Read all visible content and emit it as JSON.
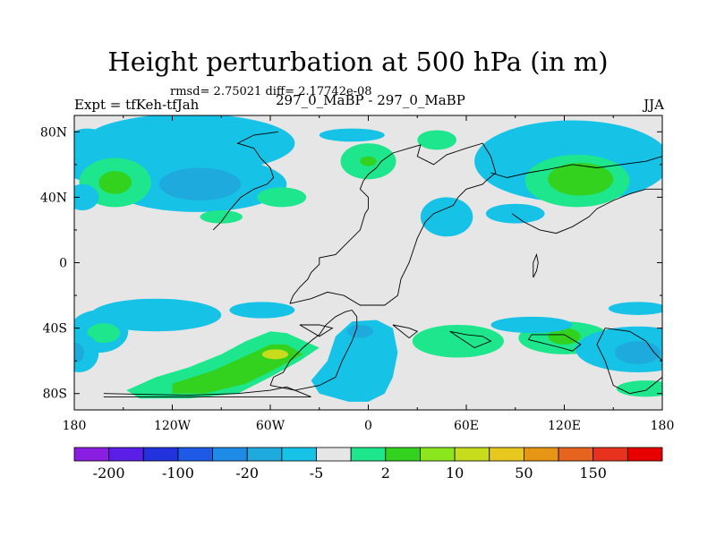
{
  "chart_data": {
    "type": "heatmap",
    "title": "Height perturbation at 500 hPa (in m)",
    "subtitle": "rmsd= 2.75021 diff= 2.17742e-08",
    "left_label": "Expt = tfKeh-tfJah",
    "center_label": "297_0_MaBP - 297_0_MaBP",
    "right_label": "JJA",
    "x_range": [
      -180,
      180
    ],
    "y_range": [
      -90,
      90
    ],
    "x_ticks": [
      {
        "value": -180,
        "label": "180"
      },
      {
        "value": -120,
        "label": "120W"
      },
      {
        "value": -60,
        "label": "60W"
      },
      {
        "value": 0,
        "label": "0"
      },
      {
        "value": 60,
        "label": "60E"
      },
      {
        "value": 120,
        "label": "120E"
      },
      {
        "value": 180,
        "label": "180"
      }
    ],
    "y_ticks": [
      {
        "value": 80,
        "label": "80N"
      },
      {
        "value": 40,
        "label": "40N"
      },
      {
        "value": 0,
        "label": "0"
      },
      {
        "value": -40,
        "label": "40S"
      },
      {
        "value": -80,
        "label": "80S"
      }
    ],
    "colorbar": {
      "colors": [
        "#8a1ee0",
        "#5a1ee6",
        "#2232dc",
        "#1e5ae6",
        "#1e8ce6",
        "#1eaadc",
        "#16c3e6",
        "#e6e6e6",
        "#1ee68c",
        "#32d21e",
        "#8ce61e",
        "#c8dc1e",
        "#e6c81e",
        "#e69614",
        "#e6641e",
        "#e6321e",
        "#e60000"
      ],
      "tick_labels": [
        "-200",
        "-100",
        "-20",
        "-5",
        "2",
        "10",
        "50",
        "150"
      ]
    },
    "regions": [
      {
        "level": 10,
        "shape": "ellipse",
        "cx": -105,
        "cy": 75,
        "rx": 42,
        "ry": 13
      },
      {
        "level": -5,
        "shape": "ellipse",
        "cx": -110,
        "cy": 73,
        "rx": 65,
        "ry": 18
      },
      {
        "level": -5,
        "shape": "ellipse",
        "cx": -172,
        "cy": 66,
        "rx": 18,
        "ry": 16
      },
      {
        "level": -5,
        "shape": "ellipse",
        "cx": -105,
        "cy": 48,
        "rx": 55,
        "ry": 17
      },
      {
        "level": -20,
        "shape": "ellipse",
        "cx": -103,
        "cy": 48,
        "rx": 25,
        "ry": 10
      },
      {
        "level": 2,
        "shape": "ellipse",
        "cx": -155,
        "cy": 49,
        "rx": 22,
        "ry": 15
      },
      {
        "level": 10,
        "shape": "ellipse",
        "cx": -155,
        "cy": 49,
        "rx": 10,
        "ry": 7
      },
      {
        "level": -5,
        "shape": "ellipse",
        "cx": -175,
        "cy": 40,
        "rx": 10,
        "ry": 8
      },
      {
        "level": 2,
        "shape": "ellipse",
        "cx": -53,
        "cy": 40,
        "rx": 15,
        "ry": 6
      },
      {
        "level": 2,
        "shape": "ellipse",
        "cx": -90,
        "cy": 28,
        "rx": 13,
        "ry": 4
      },
      {
        "level": -5,
        "shape": "ellipse",
        "cx": -10,
        "cy": 78,
        "rx": 20,
        "ry": 4
      },
      {
        "level": 2,
        "shape": "ellipse",
        "cx": 0,
        "cy": 62,
        "rx": 17,
        "ry": 11
      },
      {
        "level": 10,
        "shape": "ellipse",
        "cx": 0,
        "cy": 62,
        "rx": 5,
        "ry": 3
      },
      {
        "level": -5,
        "shape": "ellipse",
        "cx": 125,
        "cy": 62,
        "rx": 60,
        "ry": 25
      },
      {
        "level": 2,
        "shape": "ellipse",
        "cx": 128,
        "cy": 50,
        "rx": 32,
        "ry": 16
      },
      {
        "level": 10,
        "shape": "ellipse",
        "cx": 130,
        "cy": 51,
        "rx": 20,
        "ry": 10
      },
      {
        "level": -5,
        "shape": "ellipse",
        "cx": 90,
        "cy": 30,
        "rx": 18,
        "ry": 6
      },
      {
        "level": -5,
        "shape": "ellipse",
        "cx": 48,
        "cy": 28,
        "rx": 16,
        "ry": 12
      },
      {
        "level": 2,
        "shape": "ellipse",
        "cx": 42,
        "cy": 75,
        "rx": 12,
        "ry": 6
      },
      {
        "level": -5,
        "shape": "ellipse",
        "cx": -130,
        "cy": -32,
        "rx": 40,
        "ry": 10
      },
      {
        "level": -5,
        "shape": "ellipse",
        "cx": -165,
        "cy": -42,
        "rx": 18,
        "ry": 13
      },
      {
        "level": 2,
        "shape": "ellipse",
        "cx": -162,
        "cy": -43,
        "rx": 10,
        "ry": 6
      },
      {
        "level": -5,
        "shape": "ellipse",
        "cx": -177,
        "cy": -55,
        "rx": 12,
        "ry": 12
      },
      {
        "level": -20,
        "shape": "ellipse",
        "cx": -179,
        "cy": -55,
        "rx": 5,
        "ry": 6
      },
      {
        "level": -5,
        "shape": "ellipse",
        "cx": -65,
        "cy": -29,
        "rx": 20,
        "ry": 5
      },
      {
        "level": 2,
        "shape": "polygon",
        "points": [
          [
            -148,
            -78
          ],
          [
            -130,
            -70
          ],
          [
            -110,
            -64
          ],
          [
            -90,
            -56
          ],
          [
            -75,
            -48
          ],
          [
            -60,
            -42
          ],
          [
            -50,
            -43
          ],
          [
            -30,
            -52
          ],
          [
            -42,
            -60
          ],
          [
            -60,
            -70
          ],
          [
            -80,
            -80
          ],
          [
            -110,
            -83
          ],
          [
            -140,
            -83
          ]
        ]
      },
      {
        "level": 10,
        "shape": "polygon",
        "points": [
          [
            -120,
            -74
          ],
          [
            -95,
            -66
          ],
          [
            -75,
            -57
          ],
          [
            -60,
            -50
          ],
          [
            -50,
            -50
          ],
          [
            -40,
            -56
          ],
          [
            -55,
            -64
          ],
          [
            -75,
            -74
          ],
          [
            -100,
            -80
          ],
          [
            -120,
            -80
          ]
        ]
      },
      {
        "level": 50,
        "shape": "ellipse",
        "cx": -57,
        "cy": -56,
        "rx": 8,
        "ry": 3
      },
      {
        "level": -5,
        "shape": "polygon",
        "points": [
          [
            -20,
            -45
          ],
          [
            -10,
            -36
          ],
          [
            5,
            -35
          ],
          [
            15,
            -40
          ],
          [
            18,
            -55
          ],
          [
            15,
            -70
          ],
          [
            10,
            -80
          ],
          [
            0,
            -85
          ],
          [
            -12,
            -85
          ],
          [
            -30,
            -80
          ],
          [
            -35,
            -72
          ],
          [
            -25,
            -60
          ]
        ]
      },
      {
        "level": -20,
        "shape": "ellipse",
        "cx": -5,
        "cy": -42,
        "rx": 8,
        "ry": 4
      },
      {
        "level": 2,
        "shape": "ellipse",
        "cx": 55,
        "cy": -48,
        "rx": 28,
        "ry": 10
      },
      {
        "level": 2,
        "shape": "ellipse",
        "cx": 120,
        "cy": -46,
        "rx": 28,
        "ry": 10
      },
      {
        "level": 10,
        "shape": "ellipse",
        "cx": 120,
        "cy": -45,
        "rx": 10,
        "ry": 5
      },
      {
        "level": -5,
        "shape": "ellipse",
        "cx": 100,
        "cy": -38,
        "rx": 25,
        "ry": 5
      },
      {
        "level": -5,
        "shape": "ellipse",
        "cx": 165,
        "cy": -53,
        "rx": 38,
        "ry": 14
      },
      {
        "level": -20,
        "shape": "ellipse",
        "cx": 165,
        "cy": -55,
        "rx": 14,
        "ry": 7
      },
      {
        "level": -5,
        "shape": "ellipse",
        "cx": 165,
        "cy": -28,
        "rx": 18,
        "ry": 4
      },
      {
        "level": 2,
        "shape": "ellipse",
        "cx": 170,
        "cy": -77,
        "rx": 18,
        "ry": 5
      }
    ],
    "coastlines": [
      [
        [
          -162,
          -80
        ],
        [
          -110,
          -81
        ],
        [
          -80,
          -80
        ],
        [
          -60,
          -78
        ],
        [
          -50,
          -76
        ],
        [
          -40,
          -80
        ],
        [
          -35,
          -82
        ],
        [
          -60,
          -82
        ],
        [
          -100,
          -82
        ],
        [
          -162,
          -82
        ]
      ],
      [
        [
          -60,
          -75
        ],
        [
          -58,
          -70
        ],
        [
          -52,
          -67
        ],
        [
          -48,
          -60
        ],
        [
          -40,
          -52
        ],
        [
          -34,
          -47
        ],
        [
          -30,
          -44
        ],
        [
          -26,
          -38
        ],
        [
          -20,
          -33
        ],
        [
          -14,
          -30
        ],
        [
          -10,
          -29
        ],
        [
          -7,
          -33
        ],
        [
          -7,
          -40
        ],
        [
          -10,
          -48
        ],
        [
          -16,
          -60
        ],
        [
          -20,
          -70
        ],
        [
          -30,
          -75
        ],
        [
          -45,
          -78
        ],
        [
          -60,
          -75
        ]
      ],
      [
        [
          -48,
          -25
        ],
        [
          -46,
          -20
        ],
        [
          -42,
          -15
        ],
        [
          -37,
          -10
        ],
        [
          -35,
          -6
        ],
        [
          -30,
          -1
        ],
        [
          -30,
          3
        ],
        [
          -20,
          5
        ],
        [
          -15,
          10
        ],
        [
          -5,
          20
        ],
        [
          -2,
          30
        ],
        [
          0,
          33
        ],
        [
          0,
          40
        ],
        [
          -5,
          45
        ],
        [
          -3,
          50
        ],
        [
          0,
          54
        ],
        [
          5,
          58
        ],
        [
          8,
          62
        ],
        [
          15,
          67
        ],
        [
          25,
          70
        ],
        [
          32,
          72
        ],
        [
          30,
          65
        ],
        [
          40,
          60
        ],
        [
          48,
          66
        ],
        [
          60,
          70
        ],
        [
          70,
          73
        ],
        [
          75,
          65
        ],
        [
          78,
          55
        ],
        [
          72,
          50
        ],
        [
          70,
          48
        ],
        [
          60,
          45
        ],
        [
          55,
          40
        ],
        [
          52,
          35
        ],
        [
          40,
          30
        ],
        [
          35,
          25
        ],
        [
          30,
          15
        ],
        [
          25,
          0
        ],
        [
          20,
          -10
        ],
        [
          18,
          -20
        ],
        [
          10,
          -26
        ],
        [
          -5,
          -26
        ],
        [
          -15,
          -20
        ],
        [
          -25,
          -18
        ],
        [
          -35,
          -22
        ],
        [
          -48,
          -25
        ]
      ],
      [
        [
          -42,
          -38
        ],
        [
          -30,
          -38
        ],
        [
          -22,
          -40
        ],
        [
          -30,
          -45
        ],
        [
          -42,
          -38
        ]
      ],
      [
        [
          15,
          -38
        ],
        [
          25,
          -40
        ],
        [
          30,
          -42
        ],
        [
          25,
          -46
        ],
        [
          15,
          -38
        ]
      ],
      [
        [
          50,
          -42
        ],
        [
          60,
          -44
        ],
        [
          70,
          -45
        ],
        [
          75,
          -48
        ],
        [
          65,
          -52
        ],
        [
          50,
          -42
        ]
      ],
      [
        [
          98,
          -47
        ],
        [
          118,
          -52
        ],
        [
          125,
          -54
        ],
        [
          130,
          -50
        ],
        [
          120,
          -44
        ],
        [
          100,
          -44
        ],
        [
          98,
          -47
        ]
      ],
      [
        [
          145,
          -40
        ],
        [
          160,
          -42
        ],
        [
          170,
          -48
        ],
        [
          175,
          -55
        ],
        [
          180,
          -60
        ],
        [
          180,
          -70
        ],
        [
          170,
          -78
        ],
        [
          160,
          -80
        ],
        [
          150,
          -75
        ],
        [
          145,
          -60
        ],
        [
          140,
          -50
        ],
        [
          145,
          -40
        ]
      ],
      [
        [
          101,
          -9
        ],
        [
          103,
          -5
        ],
        [
          104,
          0
        ],
        [
          103,
          5
        ],
        [
          101,
          0
        ],
        [
          101,
          -9
        ]
      ],
      [
        [
          88,
          30
        ],
        [
          95,
          25
        ],
        [
          105,
          20
        ],
        [
          115,
          18
        ],
        [
          125,
          22
        ],
        [
          135,
          28
        ],
        [
          140,
          33
        ],
        [
          150,
          38
        ],
        [
          160,
          42
        ],
        [
          170,
          45
        ],
        [
          180,
          45
        ]
      ],
      [
        [
          -95,
          20
        ],
        [
          -90,
          25
        ],
        [
          -85,
          32
        ],
        [
          -78,
          40
        ],
        [
          -70,
          45
        ],
        [
          -62,
          48
        ],
        [
          -58,
          52
        ],
        [
          -60,
          58
        ],
        [
          -66,
          64
        ],
        [
          -70,
          70
        ],
        [
          -80,
          73
        ],
        [
          -70,
          78
        ],
        [
          -55,
          80
        ]
      ],
      [
        [
          75,
          55
        ],
        [
          85,
          52
        ],
        [
          98,
          55
        ],
        [
          110,
          57
        ],
        [
          125,
          60
        ],
        [
          140,
          58
        ],
        [
          155,
          60
        ],
        [
          170,
          62
        ],
        [
          180,
          65
        ]
      ]
    ]
  }
}
